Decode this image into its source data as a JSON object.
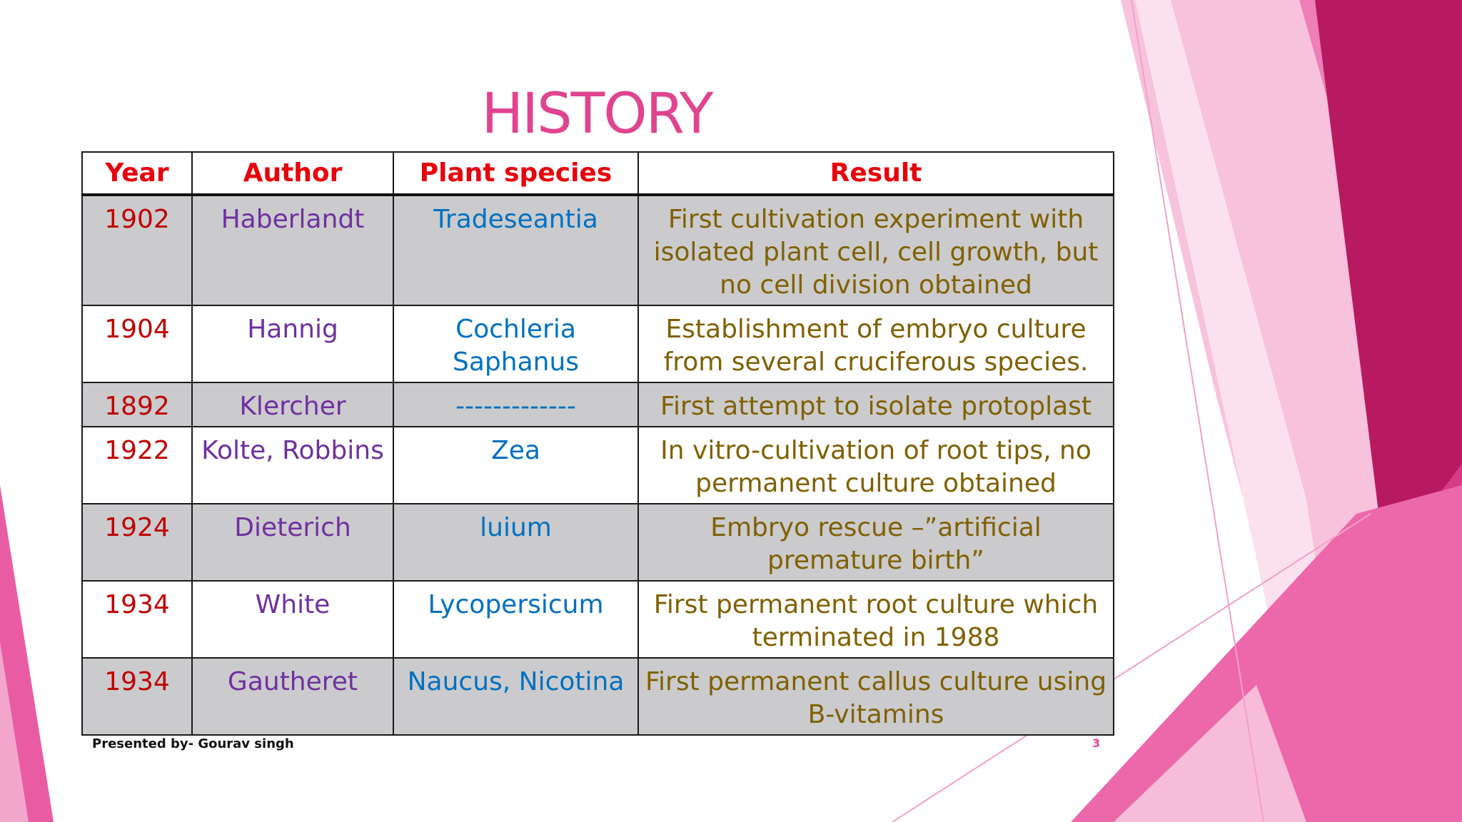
{
  "slide": {
    "title": "HISTORY",
    "footer": "Presented by- Gourav singh",
    "page_number": "3"
  },
  "colors": {
    "title": "#e0448f",
    "header": "#e8000b",
    "year": "#c00000",
    "author": "#7030a0",
    "species": "#0070c0",
    "result": "#806000",
    "page_number": "#e0448f",
    "accent_dark": "#b0165a",
    "accent_mid": "#e8539c",
    "accent_light": "#f6bcd8"
  },
  "table": {
    "headers": [
      "Year",
      "Author",
      "Plant species",
      "Result"
    ],
    "rows": [
      {
        "year": "1902",
        "author": "Haberlandt",
        "species": "Tradeseantia",
        "result": "First cultivation experiment with isolated plant cell, cell growth, but no cell division obtained"
      },
      {
        "year": "1904",
        "author": "Hannig",
        "species": "Cochleria Saphanus",
        "result": "Establishment of embryo culture from several cruciferous species."
      },
      {
        "year": "1892",
        "author": "Klercher",
        "species": "-------------",
        "result": "First attempt to isolate protoplast"
      },
      {
        "year": "1922",
        "author": "Kolte, Robbins",
        "species": "Zea",
        "result": "In vitro-cultivation of root tips, no permanent culture obtained"
      },
      {
        "year": "1924",
        "author": "Dieterich",
        "species": "luium",
        "result": "Embryo rescue –”artificial premature birth”"
      },
      {
        "year": "1934",
        "author": "White",
        "species": "Lycopersicum",
        "result": "First permanent root culture which terminated in 1988"
      },
      {
        "year": "1934",
        "author": "Gautheret",
        "species": "Naucus, Nicotina",
        "result": "First permanent callus culture using B-vitamins"
      }
    ]
  }
}
